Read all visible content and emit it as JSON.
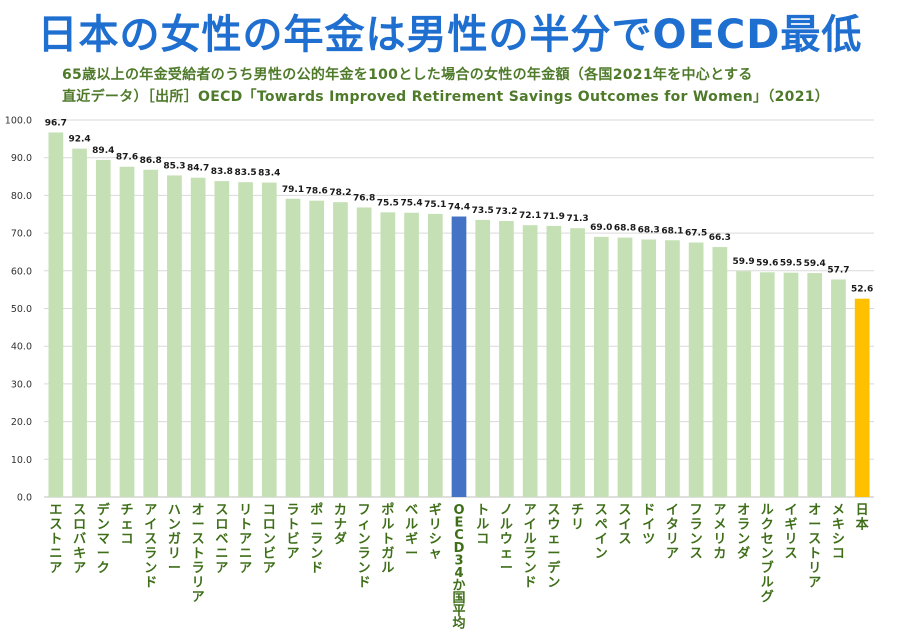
{
  "page": {
    "title": "日本の女性の年金は男性の半分でOECD最低",
    "subtitle_line1": "65歳以上の年金受給者のうち男性の公的年金を100とした場合の女性の年金額（各国2021年を中心とする",
    "subtitle_line2": "直近データ）［出所］OECD「Towards Improved Retirement Savings Outcomes for Women」（2021）"
  },
  "colors": {
    "title": "#1f6fd1",
    "subtitle": "#4e7a2a",
    "bar_default": "#c5e0b4",
    "bar_oecd": "#4472c4",
    "bar_japan": "#ffc000",
    "category_label": "#3e6e18",
    "grid": "#d9d9d9"
  },
  "chart_data": {
    "type": "bar",
    "title": "",
    "xlabel": "",
    "ylabel": "",
    "ylim": [
      0,
      100
    ],
    "yticks": [
      "0.0",
      "10.0",
      "20.0",
      "30.0",
      "40.0",
      "50.0",
      "60.0",
      "70.0",
      "80.0",
      "90.0",
      "100.0"
    ],
    "grid": true,
    "categories": [
      "エストニア",
      "スロバキア",
      "デンマーク",
      "チェコ",
      "アイスランド",
      "ハンガリー",
      "オーストラリア",
      "スロベニア",
      "リトアニア",
      "コロンビア",
      "ラトビア",
      "ポーランド",
      "カナダ",
      "フィンランド",
      "ポルトガル",
      "ベルギー",
      "ギリシャ",
      "OECD34か国平均",
      "トルコ",
      "ノルウェー",
      "アイルランド",
      "スウェーデン",
      "チリ",
      "スペイン",
      "スイス",
      "ドイツ",
      "イタリア",
      "フランス",
      "アメリカ",
      "オランダ",
      "ルクセンブルグ",
      "イギリス",
      "オーストリア",
      "メキシコ",
      "日本"
    ],
    "values": [
      96.7,
      92.4,
      89.4,
      87.6,
      86.8,
      85.3,
      84.7,
      83.8,
      83.5,
      83.4,
      79.1,
      78.6,
      78.2,
      76.8,
      75.5,
      75.4,
      75.1,
      74.4,
      73.5,
      73.2,
      72.1,
      71.9,
      71.3,
      69.0,
      68.8,
      68.3,
      68.1,
      67.5,
      66.3,
      59.9,
      59.6,
      59.5,
      59.4,
      57.7,
      52.6
    ],
    "data_labels": [
      "96.7",
      "92.4",
      "89.4",
      "87.6",
      "86.8",
      "85.3",
      "84.7",
      "83.8",
      "83.5",
      "83.4",
      "79.1",
      "78.6",
      "78.2",
      "76.8",
      "75.5",
      "75.4",
      "75.1",
      "74.4",
      "73.5",
      "73.2",
      "72.1",
      "71.9",
      "71.3",
      "69.0",
      "68.8",
      "68.3",
      "68.1",
      "67.5",
      "66.3",
      "59.9",
      "59.6",
      "59.5",
      "59.4",
      "57.7",
      "52.6"
    ],
    "highlight": {
      "OECD34か国平均": "oecd",
      "日本": "japan"
    }
  }
}
